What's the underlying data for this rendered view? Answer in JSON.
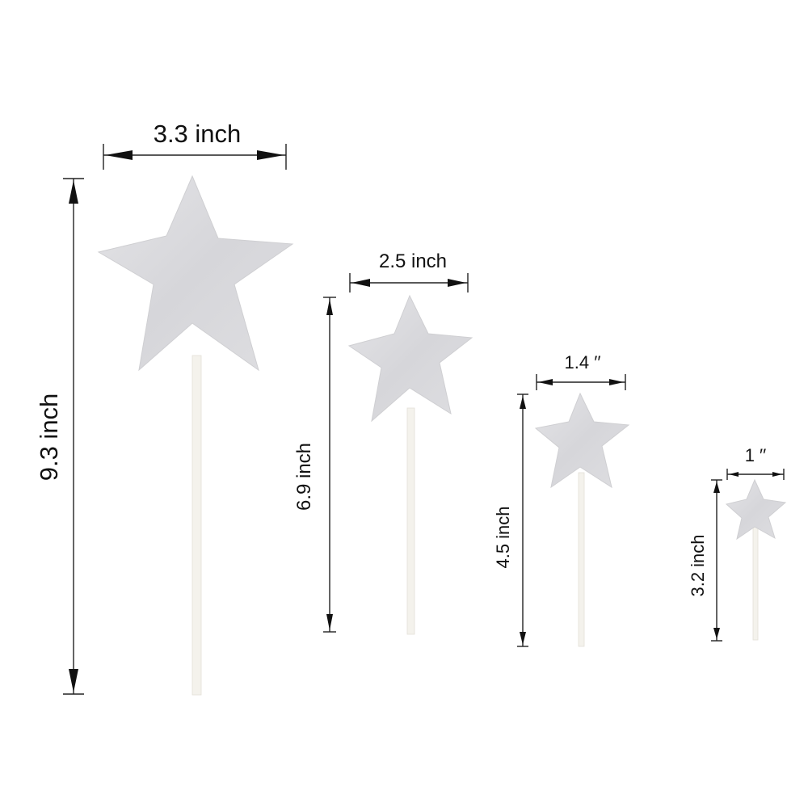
{
  "colors": {
    "background": "#ffffff",
    "star_fill": "#dcdcdf",
    "stick_fill": "#f4f2ec",
    "dimension_ink": "#111111"
  },
  "toppers": [
    {
      "name": "large",
      "width_label": "3.3 inch",
      "height_label": "9.3 inch"
    },
    {
      "name": "medium",
      "width_label": "2.5 inch",
      "height_label": "6.9 inch"
    },
    {
      "name": "small",
      "width_label": "1.4 ′′",
      "height_label": "4.5 inch"
    },
    {
      "name": "mini",
      "width_label": "1 ′′",
      "height_label": "3.2 inch"
    }
  ]
}
